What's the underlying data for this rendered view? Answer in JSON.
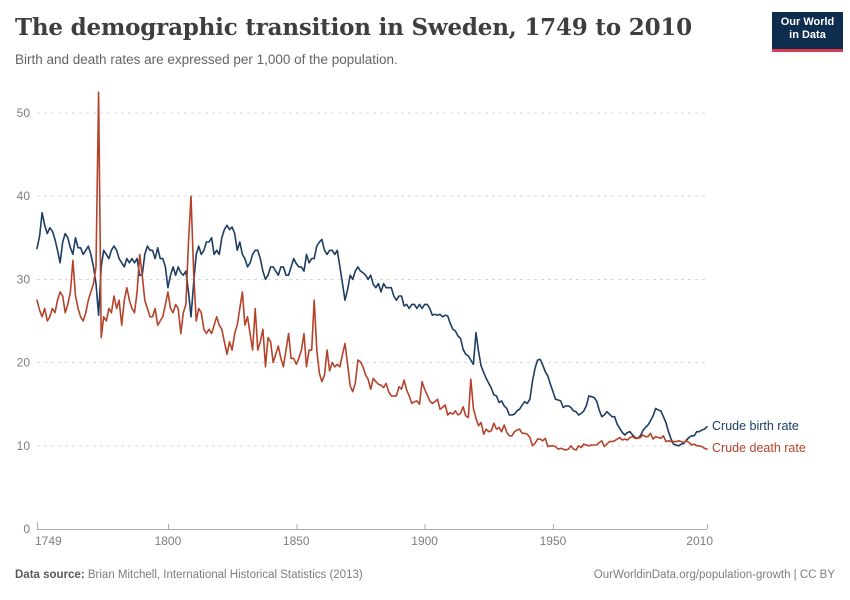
{
  "header": {
    "title": "The demographic transition in Sweden, 1749 to 2010",
    "subtitle": "Birth and death rates are expressed per 1,000 of the population."
  },
  "logo": {
    "line1": "Our World",
    "line2": "in Data",
    "bg": "#0f2d4e",
    "accent": "#d93a4d"
  },
  "chart_data": {
    "type": "line",
    "title": "The demographic transition in Sweden, 1749 to 2010",
    "xlabel": "",
    "ylabel": "",
    "unit": "per 1,000 of the population",
    "x_range": [
      1749,
      2010
    ],
    "ylim": [
      0,
      53
    ],
    "x_ticks": [
      1749,
      1800,
      1850,
      1900,
      1950,
      2010
    ],
    "y_ticks": [
      0,
      10,
      20,
      30,
      40,
      50
    ],
    "grid": "horizontal-dashed",
    "legend_position": "right-of-line-ends",
    "years": [
      1749,
      1750,
      1751,
      1752,
      1753,
      1754,
      1755,
      1756,
      1757,
      1758,
      1759,
      1760,
      1761,
      1762,
      1763,
      1764,
      1765,
      1766,
      1767,
      1768,
      1769,
      1770,
      1771,
      1772,
      1773,
      1774,
      1775,
      1776,
      1777,
      1778,
      1779,
      1780,
      1781,
      1782,
      1783,
      1784,
      1785,
      1786,
      1787,
      1788,
      1789,
      1790,
      1791,
      1792,
      1793,
      1794,
      1795,
      1796,
      1797,
      1798,
      1799,
      1800,
      1801,
      1802,
      1803,
      1804,
      1805,
      1806,
      1807,
      1808,
      1809,
      1810,
      1811,
      1812,
      1813,
      1814,
      1815,
      1816,
      1817,
      1818,
      1819,
      1820,
      1821,
      1822,
      1823,
      1824,
      1825,
      1826,
      1827,
      1828,
      1829,
      1830,
      1831,
      1832,
      1833,
      1834,
      1835,
      1836,
      1837,
      1838,
      1839,
      1840,
      1841,
      1842,
      1843,
      1844,
      1845,
      1846,
      1847,
      1848,
      1849,
      1850,
      1851,
      1852,
      1853,
      1854,
      1855,
      1856,
      1857,
      1858,
      1859,
      1860,
      1861,
      1862,
      1863,
      1864,
      1865,
      1866,
      1867,
      1868,
      1869,
      1870,
      1871,
      1872,
      1873,
      1874,
      1875,
      1876,
      1877,
      1878,
      1879,
      1880,
      1881,
      1882,
      1883,
      1884,
      1885,
      1886,
      1887,
      1888,
      1889,
      1890,
      1891,
      1892,
      1893,
      1894,
      1895,
      1896,
      1897,
      1898,
      1899,
      1900,
      1901,
      1902,
      1903,
      1904,
      1905,
      1906,
      1907,
      1908,
      1909,
      1910,
      1911,
      1912,
      1913,
      1914,
      1915,
      1916,
      1917,
      1918,
      1919,
      1920,
      1921,
      1922,
      1923,
      1924,
      1925,
      1926,
      1927,
      1928,
      1929,
      1930,
      1931,
      1932,
      1933,
      1934,
      1935,
      1936,
      1937,
      1938,
      1939,
      1940,
      1941,
      1942,
      1943,
      1944,
      1945,
      1946,
      1947,
      1948,
      1949,
      1950,
      1951,
      1952,
      1953,
      1954,
      1955,
      1956,
      1957,
      1958,
      1959,
      1960,
      1961,
      1962,
      1963,
      1964,
      1965,
      1966,
      1967,
      1968,
      1969,
      1970,
      1971,
      1972,
      1973,
      1974,
      1975,
      1976,
      1977,
      1978,
      1979,
      1980,
      1981,
      1982,
      1983,
      1984,
      1985,
      1986,
      1987,
      1988,
      1989,
      1990,
      1991,
      1992,
      1993,
      1994,
      1995,
      1996,
      1997,
      1998,
      1999,
      2000,
      2001,
      2002,
      2003,
      2004,
      2005,
      2006,
      2007,
      2008,
      2009,
      2010
    ],
    "series": [
      {
        "name": "Crude birth rate",
        "color": "#1d3d63",
        "values": [
          33.7,
          35.2,
          38.0,
          36.5,
          35.5,
          36.2,
          35.8,
          34.8,
          33.5,
          32.0,
          34.5,
          35.5,
          35.0,
          33.8,
          33.0,
          35.0,
          33.8,
          33.8,
          33.0,
          33.5,
          34.0,
          33.0,
          31.5,
          29.5,
          25.7,
          31.5,
          33.5,
          33.0,
          32.5,
          33.5,
          34.0,
          33.5,
          32.5,
          32.0,
          31.5,
          32.5,
          32.0,
          32.5,
          32.0,
          32.5,
          30.5,
          30.5,
          33.0,
          34.0,
          33.5,
          33.5,
          32.5,
          33.8,
          32.5,
          32.5,
          31.5,
          29.0,
          30.5,
          31.5,
          30.5,
          31.5,
          30.8,
          30.5,
          31.0,
          28.5,
          25.5,
          29.5,
          33.0,
          34.0,
          33.0,
          33.5,
          34.5,
          34.5,
          35.0,
          33.0,
          33.5,
          33.0,
          35.0,
          36.0,
          36.5,
          36.0,
          36.3,
          35.5,
          33.5,
          34.5,
          33.0,
          32.5,
          31.5,
          32.0,
          33.0,
          33.5,
          33.5,
          32.5,
          31.0,
          30.0,
          30.5,
          31.5,
          31.5,
          31.0,
          30.5,
          31.5,
          31.5,
          30.5,
          30.5,
          31.5,
          32.5,
          31.9,
          31.5,
          31.5,
          31.0,
          33.0,
          32.0,
          32.5,
          32.5,
          34.0,
          34.5,
          34.8,
          33.5,
          33.0,
          33.5,
          33.5,
          33.0,
          33.5,
          31.5,
          29.5,
          27.5,
          28.8,
          30.5,
          30.0,
          31.0,
          31.5,
          31.0,
          30.8,
          30.5,
          30.0,
          30.5,
          29.4,
          29.0,
          29.5,
          28.5,
          29.5,
          29.0,
          29.0,
          29.0,
          28.0,
          27.5,
          28.0,
          28.0,
          26.8,
          27.0,
          26.5,
          27.0,
          27.0,
          26.5,
          27.0,
          26.5,
          27.0,
          27.0,
          26.5,
          25.7,
          25.8,
          25.7,
          25.8,
          25.5,
          25.7,
          25.6,
          24.7,
          24.0,
          23.8,
          23.2,
          22.9,
          21.6,
          21.0,
          20.8,
          20.3,
          19.8,
          23.6,
          21.4,
          19.6,
          18.8,
          18.1,
          17.5,
          16.9,
          16.1,
          16.0,
          15.2,
          15.4,
          14.8,
          14.5,
          13.7,
          13.7,
          13.8,
          14.2,
          14.4,
          14.9,
          15.3,
          15.1,
          15.6,
          17.7,
          19.3,
          20.3,
          20.4,
          19.7,
          18.9,
          18.4,
          17.4,
          16.5,
          15.6,
          15.5,
          15.4,
          14.6,
          14.8,
          14.8,
          14.6,
          14.2,
          14.1,
          13.7,
          13.9,
          14.2,
          14.8,
          16.0,
          15.9,
          15.8,
          15.4,
          14.3,
          13.5,
          13.7,
          14.1,
          13.8,
          13.5,
          13.5,
          12.6,
          12.1,
          11.6,
          11.3,
          11.6,
          11.7,
          11.3,
          11.0,
          10.9,
          11.2,
          11.8,
          12.2,
          12.5,
          13.0,
          13.6,
          14.5,
          14.3,
          14.2,
          13.5,
          12.8,
          11.7,
          10.8,
          10.2,
          10.1,
          10.0,
          10.2,
          10.3,
          10.7,
          11.0,
          11.2,
          11.2,
          11.7,
          11.7,
          11.9,
          12.0,
          12.3
        ]
      },
      {
        "name": "Crude death rate",
        "color": "#b5432b",
        "values": [
          27.5,
          26.3,
          25.5,
          26.5,
          25.0,
          25.5,
          26.5,
          26.0,
          27.5,
          28.5,
          28.0,
          26.0,
          27.0,
          28.5,
          32.3,
          28.0,
          26.5,
          25.5,
          25.0,
          26.0,
          27.5,
          28.5,
          29.5,
          31.5,
          52.5,
          23.0,
          25.5,
          25.0,
          26.5,
          26.0,
          28.0,
          26.5,
          27.5,
          24.5,
          27.5,
          29.0,
          27.5,
          26.5,
          26.0,
          28.5,
          33.0,
          30.5,
          27.5,
          26.5,
          25.5,
          25.5,
          26.5,
          24.5,
          25.0,
          25.5,
          27.0,
          28.5,
          26.5,
          26.0,
          27.0,
          26.5,
          23.5,
          26.0,
          27.0,
          34.5,
          40.0,
          31.0,
          25.0,
          26.5,
          26.0,
          24.0,
          23.5,
          24.0,
          23.5,
          24.5,
          25.5,
          24.5,
          24.0,
          22.5,
          21.0,
          22.5,
          21.5,
          23.5,
          24.5,
          26.5,
          28.5,
          24.5,
          25.5,
          23.5,
          21.5,
          26.5,
          21.5,
          22.5,
          24.0,
          19.5,
          23.0,
          22.5,
          20.0,
          21.0,
          22.0,
          20.5,
          19.5,
          21.5,
          23.5,
          20.5,
          20.5,
          19.8,
          20.5,
          21.5,
          23.5,
          19.5,
          21.5,
          21.5,
          27.5,
          21.5,
          18.7,
          17.7,
          18.5,
          21.5,
          19.0,
          20.0,
          19.5,
          19.8,
          19.5,
          21.0,
          22.3,
          19.8,
          17.2,
          16.5,
          17.5,
          20.3,
          20.1,
          19.5,
          18.5,
          18.0,
          16.8,
          18.1,
          17.7,
          17.4,
          17.3,
          17.0,
          17.5,
          16.5,
          16.0,
          16.0,
          16.0,
          17.1,
          16.8,
          17.9,
          16.7,
          16.0,
          15.1,
          15.3,
          15.4,
          15.0,
          17.7,
          16.8,
          16.1,
          15.4,
          15.1,
          15.3,
          15.6,
          14.4,
          14.6,
          14.9,
          13.7,
          14.0,
          13.8,
          14.2,
          13.7,
          13.9,
          14.7,
          13.6,
          13.4,
          18.0,
          14.5,
          13.3,
          12.4,
          12.8,
          11.4,
          12.0,
          11.7,
          11.8,
          12.7,
          12.0,
          12.2,
          11.7,
          12.5,
          11.6,
          11.2,
          11.2,
          11.7,
          11.9,
          12.0,
          11.5,
          11.5,
          11.4,
          11.0,
          10.0,
          10.3,
          10.8,
          10.8,
          10.6,
          10.9,
          9.9,
          10.0,
          10.0,
          9.9,
          9.6,
          9.7,
          9.6,
          9.5,
          9.6,
          10.0,
          9.6,
          9.5,
          10.0,
          9.8,
          10.2,
          10.1,
          10.0,
          10.1,
          10.1,
          10.1,
          10.4,
          10.6,
          9.9,
          10.2,
          10.5,
          10.5,
          10.6,
          10.8,
          11.0,
          10.7,
          10.8,
          10.7,
          11.0,
          11.1,
          10.9,
          10.9,
          11.0,
          11.3,
          11.1,
          11.1,
          11.5,
          10.8,
          11.1,
          11.0,
          10.9,
          11.2,
          10.5,
          10.6,
          10.5,
          10.5,
          10.5,
          10.6,
          10.5,
          10.4,
          10.6,
          10.4,
          10.1,
          10.2,
          10.0,
          10.0,
          9.9,
          9.7,
          9.6
        ]
      }
    ]
  },
  "footer": {
    "source_label": "Data source:",
    "source_text": " Brian Mitchell, International Historical Statistics (2013)",
    "right_text": "OurWorldinData.org/population-growth | CC BY"
  }
}
